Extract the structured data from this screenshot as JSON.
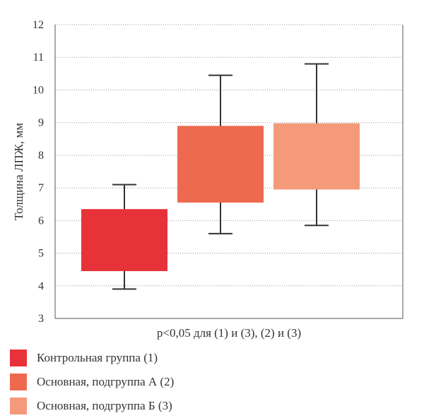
{
  "chart_data": {
    "type": "box",
    "ylabel": "Толщина ЛПЖ, мм",
    "xlabel": "p<0,05 для (1) и (3), (2) и (3)",
    "ylim": [
      3,
      12
    ],
    "yticks": [
      3,
      4,
      5,
      6,
      7,
      8,
      9,
      10,
      11,
      12
    ],
    "grid": true,
    "series": [
      {
        "name": "Контрольная группа (1)",
        "whisker_low": 3.9,
        "q1": 4.45,
        "q3": 6.35,
        "whisker_high": 7.1,
        "color": "#e8323a"
      },
      {
        "name": "Основная, подгруппа А (2)",
        "whisker_low": 5.6,
        "q1": 6.55,
        "q3": 8.9,
        "whisker_high": 10.45,
        "color": "#ee6a4f"
      },
      {
        "name": "Основная, подгруппа Б (3)",
        "whisker_low": 5.85,
        "q1": 6.95,
        "q3": 8.98,
        "whisker_high": 10.8,
        "color": "#f49a7a"
      }
    ]
  }
}
